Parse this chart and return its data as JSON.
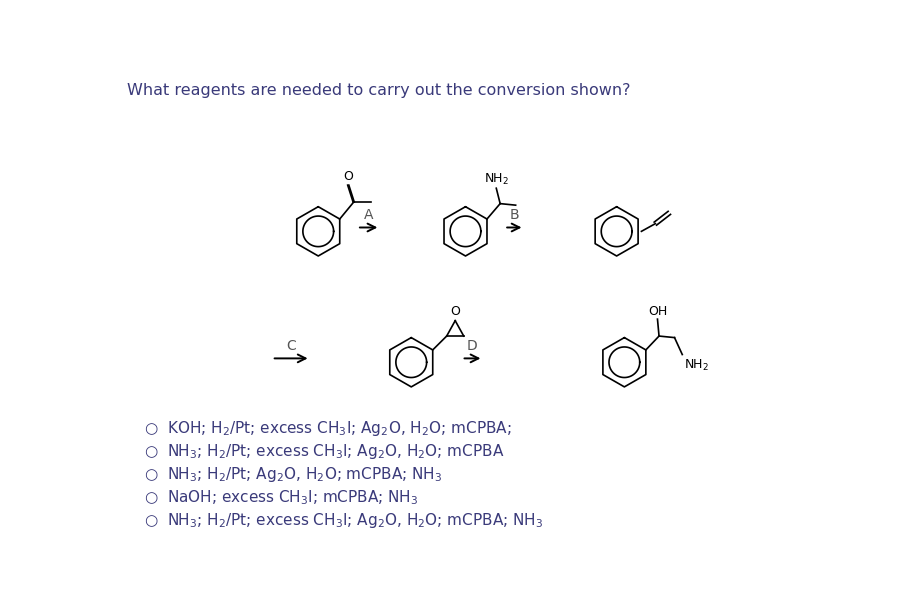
{
  "title": "What reagents are needed to carry out the conversion shown?",
  "title_color": "#3a3a7a",
  "title_fontsize": 11.5,
  "option_color": "#3a3a7a",
  "option_fontsize": 11,
  "label_color": "#555555",
  "options": [
    "○  KOH; H$_2$/Pt; excess CH$_3$I; Ag$_2$O, H$_2$O; mCPBA;",
    "○  NH$_3$; H$_2$/Pt; excess CH$_3$I; Ag$_2$O, H$_2$O; mCPBA",
    "○  NH$_3$; H$_2$/Pt; Ag$_2$O, H$_2$O; mCPBA; NH$_3$",
    "○  NaOH; excess CH$_3$I; mCPBA; NH$_3$",
    "○  NH$_3$; H$_2$/Pt; excess CH$_3$I; Ag$_2$O, H$_2$O; mCPBA; NH$_3$"
  ]
}
